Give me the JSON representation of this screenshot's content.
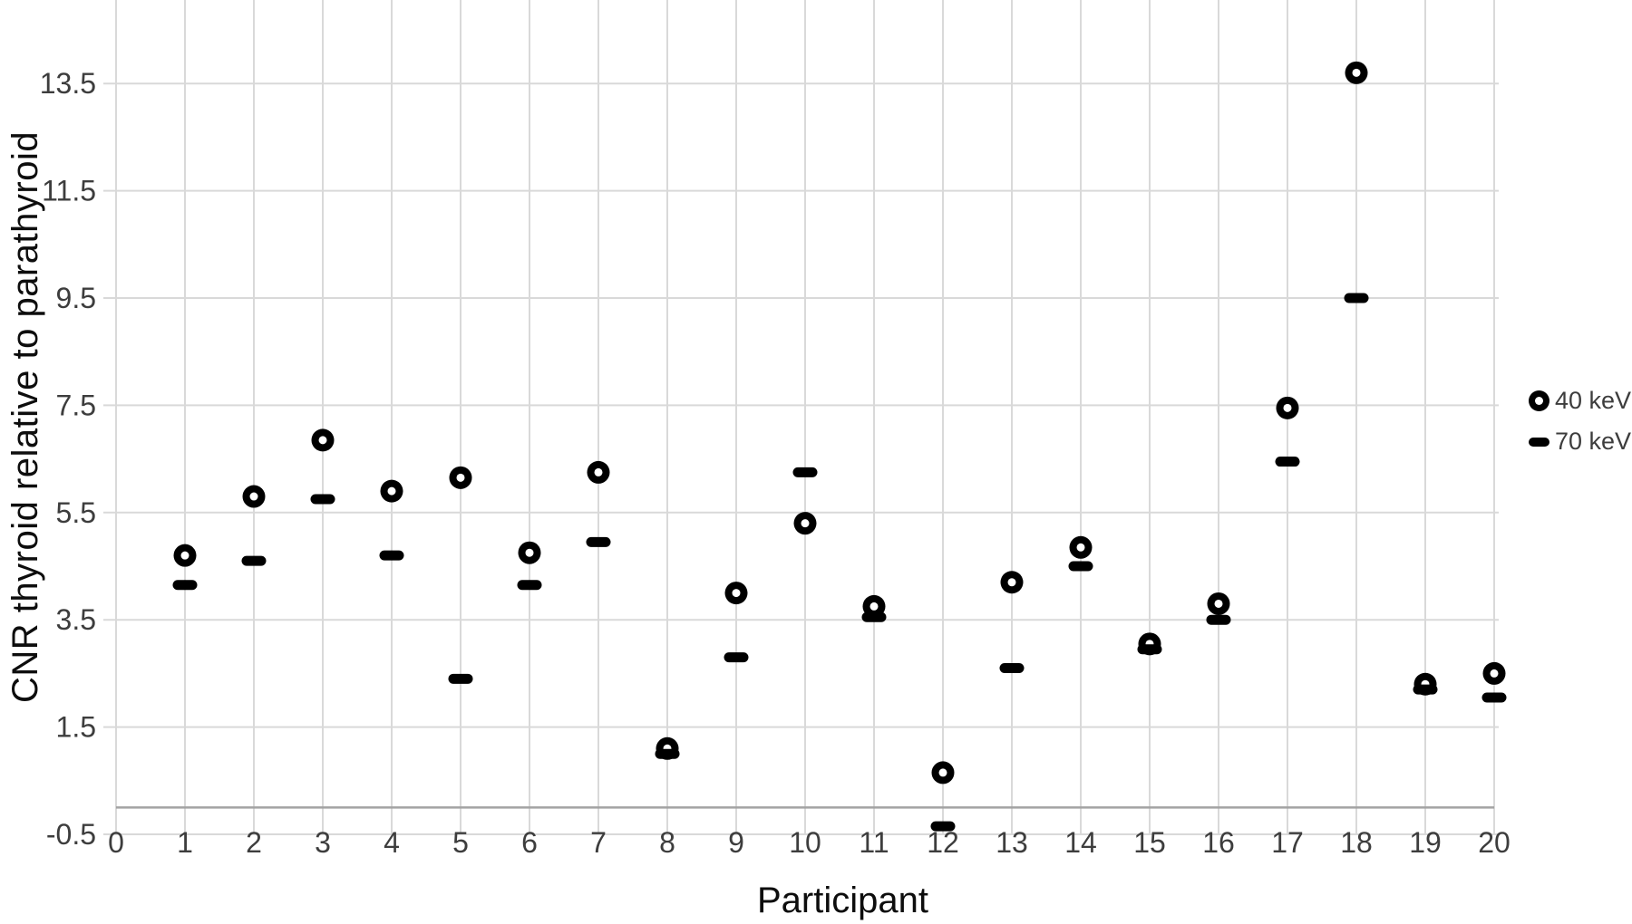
{
  "chart_data": {
    "type": "scatter",
    "title": "",
    "xlabel": "Participant",
    "ylabel": "CNR thyroid relative to parathyroid",
    "xlim": [
      0,
      20
    ],
    "ylim": [
      -0.5,
      15.1
    ],
    "grid": true,
    "legend_position": "right",
    "x_ticks": [
      0,
      1,
      2,
      3,
      4,
      5,
      6,
      7,
      8,
      9,
      10,
      11,
      12,
      13,
      14,
      15,
      16,
      17,
      18,
      19,
      20
    ],
    "y_ticks": [
      "-0.5",
      "1.5",
      "3.5",
      "5.5",
      "7.5",
      "9.5",
      "11.5",
      "13.5"
    ],
    "y_tick_values": [
      -0.5,
      1.5,
      3.5,
      5.5,
      7.5,
      9.5,
      11.5,
      13.5
    ],
    "x": [
      1,
      2,
      3,
      4,
      5,
      6,
      7,
      8,
      9,
      10,
      11,
      12,
      13,
      14,
      15,
      16,
      17,
      18,
      19,
      20
    ],
    "series": [
      {
        "name": "40 keV",
        "marker": "circle",
        "values": [
          4.7,
          5.8,
          6.85,
          5.9,
          6.15,
          4.75,
          6.25,
          1.1,
          4.0,
          5.3,
          3.75,
          0.65,
          4.2,
          4.85,
          3.05,
          3.8,
          7.45,
          13.7,
          2.3,
          2.5
        ]
      },
      {
        "name": "70 keV",
        "marker": "dash",
        "values": [
          4.15,
          4.6,
          5.75,
          4.7,
          2.4,
          4.15,
          4.95,
          1.0,
          2.8,
          6.25,
          3.55,
          -0.35,
          2.6,
          4.5,
          2.95,
          3.5,
          6.45,
          9.5,
          2.2,
          2.05
        ]
      }
    ],
    "colors": {
      "marker": "#000000",
      "gridline": "#d9d9d9",
      "zero_axis": "#a3a3a3",
      "tick_label": "#3d3d3d",
      "axis_title": "#0d0d0d",
      "legend_text": "#3d3d3d",
      "background": "#ffffff"
    }
  }
}
